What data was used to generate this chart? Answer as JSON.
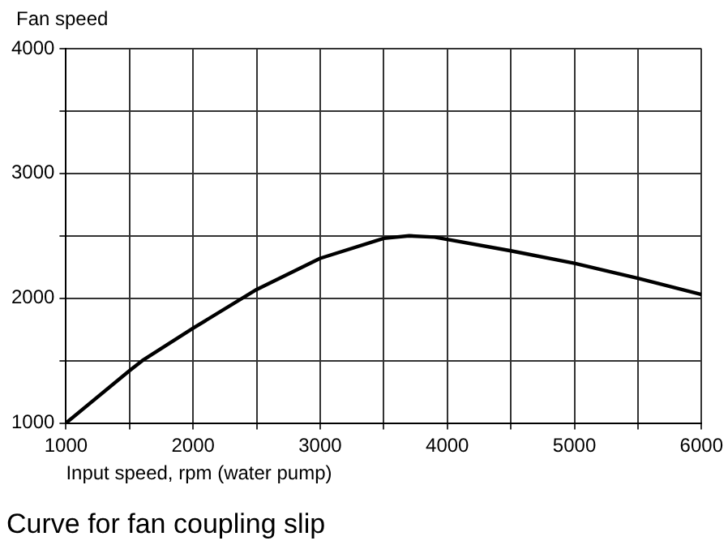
{
  "chart_data": {
    "type": "line",
    "title": "Curve for fan coupling slip",
    "xlabel": "Input speed, rpm (water pump)",
    "ylabel": "Fan speed",
    "x": [
      1000,
      1500,
      1600,
      2000,
      2500,
      3000,
      3500,
      3700,
      3900,
      4500,
      5000,
      5500,
      6000
    ],
    "series": [
      {
        "color": "#000000",
        "values": [
          1000,
          1420,
          1500,
          1760,
          2070,
          2320,
          2480,
          2500,
          2490,
          2380,
          2280,
          2160,
          2030
        ]
      }
    ],
    "xlim": [
      1000,
      6000
    ],
    "xticks": [
      1000,
      {
        "value": 1500,
        "label": null
      },
      2000,
      {
        "value": 2500,
        "label": null
      },
      3000,
      {
        "value": 3500,
        "label": null
      },
      4000,
      {
        "value": 4500,
        "label": null
      },
      5000,
      {
        "value": 5500,
        "label": null
      },
      6000
    ],
    "ylim": [
      1000,
      4000
    ],
    "yticks": [
      1000,
      {
        "value": 1500,
        "label": null
      },
      2000,
      {
        "value": 2500,
        "label": null
      },
      3000,
      {
        "value": 3500,
        "label": null
      },
      4000
    ],
    "grid": true,
    "legend": false,
    "marker": "none",
    "line_style": "solid"
  }
}
